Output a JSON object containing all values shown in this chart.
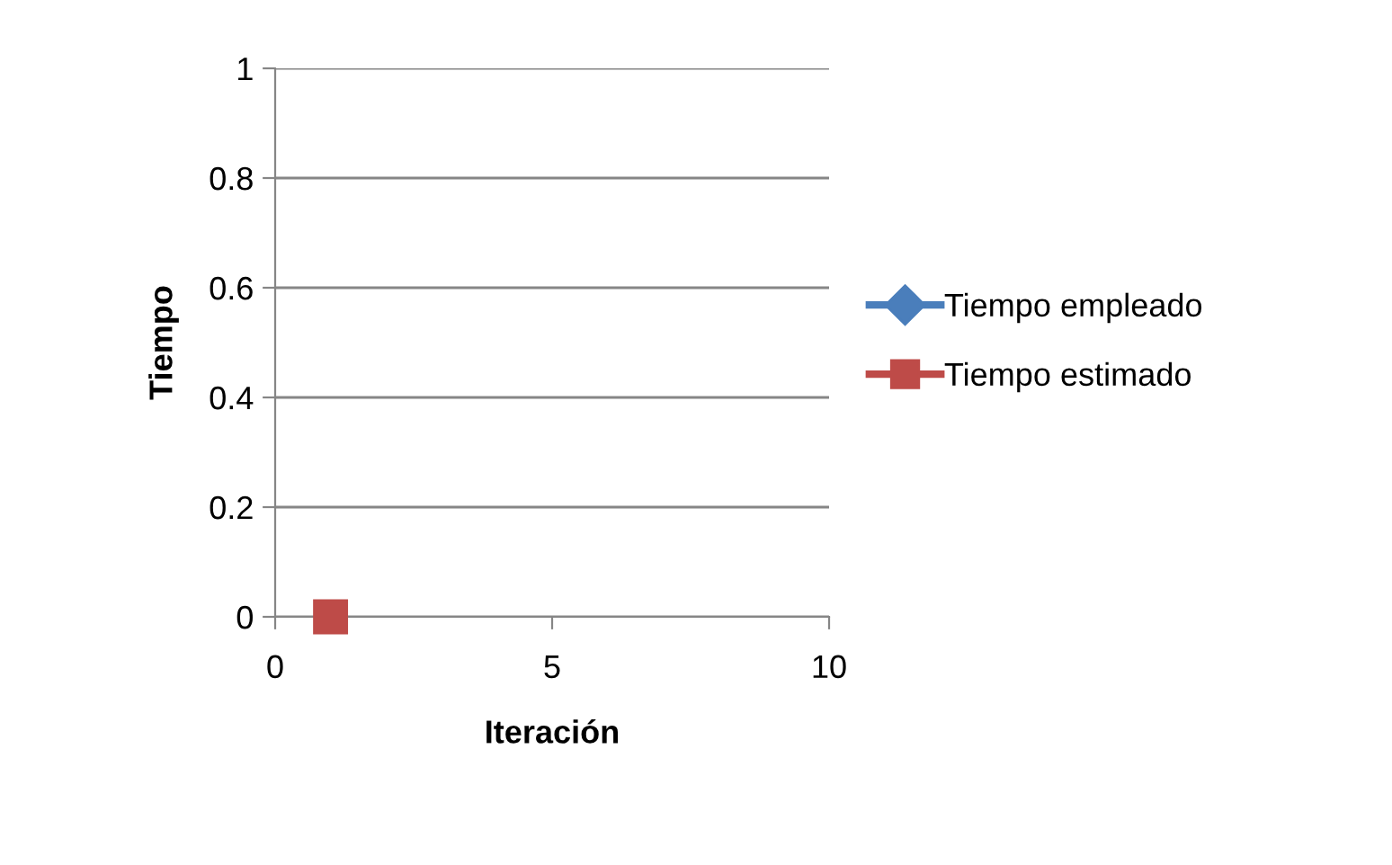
{
  "chart_data": {
    "type": "line",
    "xlabel": "Iteración",
    "ylabel": "Tiempo",
    "x": [
      1
    ],
    "series": [
      {
        "name": "Tiempo empleado",
        "color": "#4a7ebb",
        "values": [
          null
        ],
        "marker": "diamond"
      },
      {
        "name": "Tiempo estimado",
        "color": "#be4b48",
        "values": [
          0
        ],
        "marker": "square"
      }
    ],
    "xlim": [
      0,
      10
    ],
    "xticks": [
      0,
      5,
      10
    ],
    "ylim": [
      0,
      1
    ],
    "yticks": [
      0,
      0.2,
      0.4,
      0.6,
      0.8,
      1
    ],
    "grid": "y",
    "legend": "right",
    "line_style": "solid"
  }
}
